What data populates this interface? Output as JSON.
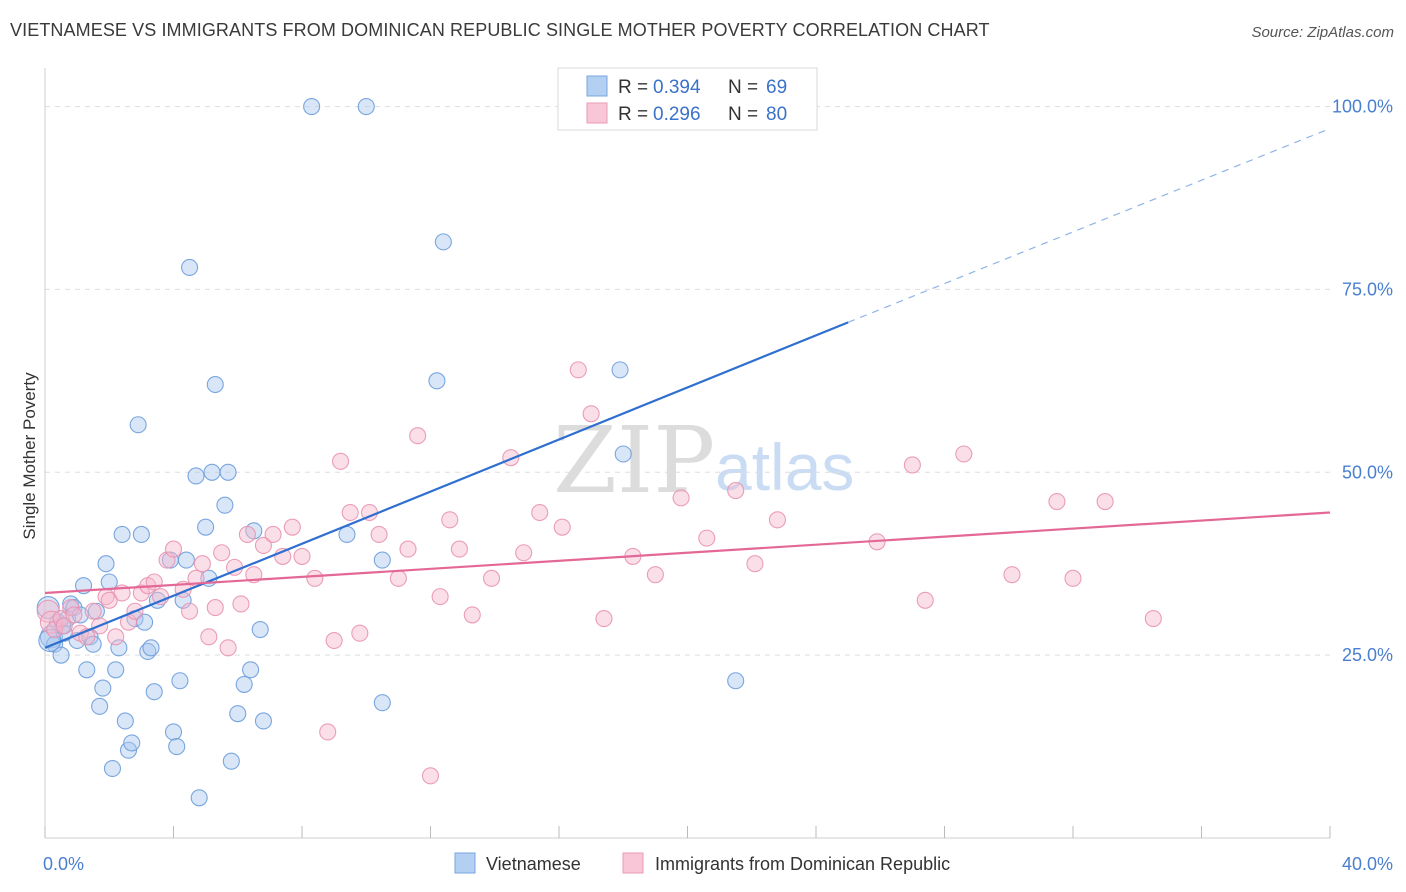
{
  "title": "VIETNAMESE VS IMMIGRANTS FROM DOMINICAN REPUBLIC SINGLE MOTHER POVERTY CORRELATION CHART",
  "source": "Source: ZipAtlas.com",
  "watermark": {
    "zip": "ZIP",
    "atlas": "atlas"
  },
  "colors": {
    "blue": "#2f6fcf",
    "blue_fill": "#a9c8f0",
    "pink": "#e46895",
    "pink_fill": "#f6b9cc",
    "tick_label": "#4a7fd0",
    "grid": "#dddddd"
  },
  "legend": {
    "rows": [
      {
        "r_label": "R =",
        "r_value": "0.394",
        "n_label": "N =",
        "n_value": "69"
      },
      {
        "r_label": "R =",
        "r_value": "0.296",
        "n_label": "N =",
        "n_value": "80"
      }
    ]
  },
  "chart_data": {
    "type": "scatter",
    "title": "VIETNAMESE VS IMMIGRANTS FROM DOMINICAN REPUBLIC SINGLE MOTHER POVERTY CORRELATION CHART",
    "xlabel": "",
    "ylabel": "Single Mother Poverty",
    "xlim": [
      0,
      40
    ],
    "ylim": [
      0,
      105
    ],
    "x_tick_labels": [
      {
        "value": 0,
        "label": "0.0%"
      },
      {
        "value": 40,
        "label": "40.0%"
      }
    ],
    "x_minor_ticks": [
      0,
      4,
      8,
      12,
      16,
      20,
      24,
      28,
      32,
      36,
      40
    ],
    "y_ticks": [
      {
        "value": 25,
        "label": "25.0%"
      },
      {
        "value": 50,
        "label": "50.0%"
      },
      {
        "value": 75,
        "label": "75.0%"
      },
      {
        "value": 100,
        "label": "100.0%"
      }
    ],
    "grid": true,
    "legend_position": "top-center",
    "series": [
      {
        "name": "Vietnamese",
        "r": 0.394,
        "n": 69,
        "trend": {
          "x0": 0,
          "y0": 26.0,
          "x1": 25,
          "y1": 70.5,
          "dash_to_x": 40,
          "dash_to_y": 97.0
        },
        "points": [
          [
            0.1,
            31.5
          ],
          [
            0.2,
            27.5
          ],
          [
            0.3,
            26.5
          ],
          [
            0.4,
            29.5
          ],
          [
            0.5,
            25.0
          ],
          [
            0.6,
            28.0
          ],
          [
            0.7,
            30.0
          ],
          [
            0.8,
            32.0
          ],
          [
            0.9,
            31.5
          ],
          [
            1.0,
            27.0
          ],
          [
            1.1,
            30.5
          ],
          [
            1.2,
            34.5
          ],
          [
            1.3,
            23.0
          ],
          [
            1.4,
            27.5
          ],
          [
            1.5,
            26.5
          ],
          [
            1.6,
            31.0
          ],
          [
            1.7,
            18.0
          ],
          [
            1.8,
            20.5
          ],
          [
            1.9,
            37.5
          ],
          [
            2.0,
            35.0
          ],
          [
            2.1,
            9.5
          ],
          [
            2.2,
            23.0
          ],
          [
            2.3,
            26.0
          ],
          [
            2.4,
            41.5
          ],
          [
            2.5,
            16.0
          ],
          [
            2.6,
            12.0
          ],
          [
            2.7,
            13.0
          ],
          [
            2.8,
            30.0
          ],
          [
            2.9,
            56.5
          ],
          [
            3.0,
            41.5
          ],
          [
            3.1,
            29.5
          ],
          [
            3.2,
            25.5
          ],
          [
            3.3,
            26.0
          ],
          [
            3.4,
            20.0
          ],
          [
            3.5,
            32.5
          ],
          [
            3.9,
            38.0
          ],
          [
            4.0,
            14.5
          ],
          [
            4.1,
            12.5
          ],
          [
            4.2,
            21.5
          ],
          [
            4.3,
            32.5
          ],
          [
            4.4,
            38.0
          ],
          [
            4.5,
            78.0
          ],
          [
            4.7,
            49.5
          ],
          [
            4.8,
            5.5
          ],
          [
            5.0,
            42.5
          ],
          [
            5.1,
            35.5
          ],
          [
            5.2,
            50.0
          ],
          [
            5.3,
            62.0
          ],
          [
            5.6,
            45.5
          ],
          [
            5.7,
            50.0
          ],
          [
            5.8,
            10.5
          ],
          [
            6.0,
            17.0
          ],
          [
            6.2,
            21.0
          ],
          [
            6.4,
            23.0
          ],
          [
            6.5,
            42.0
          ],
          [
            6.7,
            28.5
          ],
          [
            6.8,
            16.0
          ],
          [
            8.3,
            100.0
          ],
          [
            9.4,
            41.5
          ],
          [
            10.0,
            100.0
          ],
          [
            10.5,
            38.0
          ],
          [
            10.5,
            18.5
          ],
          [
            12.2,
            62.5
          ],
          [
            12.4,
            81.5
          ],
          [
            17.9,
            64.0
          ],
          [
            18.0,
            52.5
          ],
          [
            21.5,
            21.5
          ],
          [
            0.15,
            27.0
          ],
          [
            0.55,
            29.0
          ]
        ]
      },
      {
        "name": "Immigrants from Dominican Republic",
        "r": 0.296,
        "n": 80,
        "trend": {
          "x0": 0,
          "y0": 33.5,
          "x1": 40,
          "y1": 44.5
        },
        "points": [
          [
            0.1,
            31.0
          ],
          [
            0.2,
            29.5
          ],
          [
            0.3,
            28.5
          ],
          [
            0.5,
            30.0
          ],
          [
            0.6,
            29.0
          ],
          [
            0.8,
            31.5
          ],
          [
            0.9,
            30.5
          ],
          [
            1.1,
            28.0
          ],
          [
            1.3,
            27.5
          ],
          [
            1.5,
            31.0
          ],
          [
            1.7,
            29.0
          ],
          [
            1.9,
            33.0
          ],
          [
            2.0,
            32.5
          ],
          [
            2.2,
            27.5
          ],
          [
            2.4,
            33.5
          ],
          [
            2.6,
            29.5
          ],
          [
            2.8,
            31.0
          ],
          [
            3.0,
            33.5
          ],
          [
            3.2,
            34.5
          ],
          [
            3.4,
            35.0
          ],
          [
            3.6,
            33.0
          ],
          [
            3.8,
            38.0
          ],
          [
            4.0,
            39.5
          ],
          [
            4.3,
            34.0
          ],
          [
            4.5,
            31.0
          ],
          [
            4.7,
            35.5
          ],
          [
            4.9,
            37.5
          ],
          [
            5.1,
            27.5
          ],
          [
            5.3,
            31.5
          ],
          [
            5.5,
            39.0
          ],
          [
            5.7,
            26.0
          ],
          [
            5.9,
            37.0
          ],
          [
            6.1,
            32.0
          ],
          [
            6.3,
            41.5
          ],
          [
            6.5,
            36.0
          ],
          [
            6.8,
            40.0
          ],
          [
            7.1,
            41.5
          ],
          [
            7.4,
            38.5
          ],
          [
            7.7,
            42.5
          ],
          [
            8.0,
            38.5
          ],
          [
            8.4,
            35.5
          ],
          [
            8.8,
            14.5
          ],
          [
            9.0,
            27.0
          ],
          [
            9.2,
            51.5
          ],
          [
            9.5,
            44.5
          ],
          [
            9.8,
            28.0
          ],
          [
            10.1,
            44.5
          ],
          [
            10.4,
            41.5
          ],
          [
            11.0,
            35.5
          ],
          [
            11.3,
            39.5
          ],
          [
            11.6,
            55.0
          ],
          [
            12.0,
            8.5
          ],
          [
            12.3,
            33.0
          ],
          [
            12.6,
            43.5
          ],
          [
            12.9,
            39.5
          ],
          [
            13.3,
            30.5
          ],
          [
            13.9,
            35.5
          ],
          [
            14.5,
            52.0
          ],
          [
            14.9,
            39.0
          ],
          [
            15.4,
            44.5
          ],
          [
            16.1,
            42.5
          ],
          [
            16.6,
            64.0
          ],
          [
            17.0,
            58.0
          ],
          [
            17.4,
            30.0
          ],
          [
            18.3,
            38.5
          ],
          [
            19.0,
            36.0
          ],
          [
            19.8,
            46.5
          ],
          [
            20.6,
            41.0
          ],
          [
            21.5,
            47.5
          ],
          [
            22.1,
            37.5
          ],
          [
            22.8,
            43.5
          ],
          [
            25.9,
            40.5
          ],
          [
            27.0,
            51.0
          ],
          [
            27.4,
            32.5
          ],
          [
            28.6,
            52.5
          ],
          [
            30.1,
            36.0
          ],
          [
            31.5,
            46.0
          ],
          [
            32.0,
            35.5
          ],
          [
            33.0,
            46.0
          ],
          [
            34.5,
            30.0
          ]
        ]
      }
    ]
  },
  "bottom_legend": {
    "items": [
      {
        "label": "Vietnamese"
      },
      {
        "label": "Immigrants from Dominican Republic"
      }
    ]
  }
}
